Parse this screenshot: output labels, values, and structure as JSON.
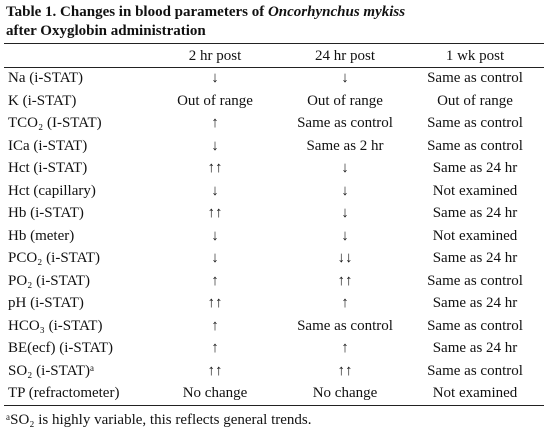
{
  "title": {
    "prefix": "Table 1. Changes in blood parameters of",
    "species": "Oncorhynchus mykiss",
    "line2": "after Oxyglobin administration"
  },
  "table": {
    "header": [
      "2 hr post",
      "24 hr post",
      "1 wk post"
    ],
    "rows": [
      [
        "Na (i-STAT)",
        "↓",
        "↓",
        "Same as control"
      ],
      [
        "K (i-STAT)",
        "Out of range",
        "Out of range",
        "Out of range"
      ],
      [
        "TCO₂ (I-STAT)",
        "↑",
        "Same as control",
        "Same as control"
      ],
      [
        "ICa (i-STAT)",
        "↓",
        "Same as 2 hr",
        "Same as control"
      ],
      [
        "Hct (i-STAT)",
        "↑↑",
        "↓",
        "Same as 24 hr"
      ],
      [
        "Hct (capillary)",
        "↓",
        "↓",
        "Not examined"
      ],
      [
        "Hb (i-STAT)",
        "↑↑",
        "↓",
        "Same as 24 hr"
      ],
      [
        "Hb (meter)",
        "↓",
        "↓",
        "Not examined"
      ],
      [
        "PCO₂ (i-STAT)",
        "↓",
        "↓↓",
        "Same as 24 hr"
      ],
      [
        "PO₂ (i-STAT)",
        "↑",
        "↑↑",
        "Same as control"
      ],
      [
        "pH (i-STAT)",
        "↑↑",
        "↑",
        "Same as 24 hr"
      ],
      [
        "HCO₃ (i-STAT)",
        "↑",
        "Same as control",
        "Same as control"
      ],
      [
        "BE(ecf) (i-STAT)",
        "↑",
        "↑",
        "Same as 24 hr"
      ],
      [
        "SO₂ (i-STAT)ᵃ",
        "↑↑",
        "↑↑",
        "Same as control"
      ],
      [
        "TP (refractometer)",
        "No change",
        "No change",
        "Not examined"
      ]
    ]
  },
  "footnote": "ᵃSO₂ is highly variable, this reflects general trends."
}
